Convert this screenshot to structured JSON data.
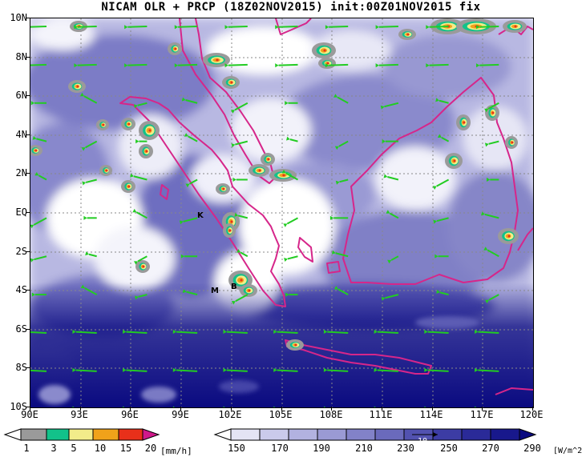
{
  "title": "NICAM OLR + PRCP (18Z02NOV2015) init:00Z01NOV2015 fix",
  "map": {
    "lat_labels": [
      "10N",
      "8N",
      "6N",
      "4N",
      "2N",
      "EQ",
      "2S",
      "4S",
      "6S",
      "8S",
      "10S"
    ],
    "lon_labels": [
      "90E",
      "93E",
      "96E",
      "99E",
      "102E",
      "105E",
      "108E",
      "111E",
      "114E",
      "117E",
      "120E"
    ],
    "station_labels": [
      "K",
      "M",
      "B"
    ],
    "coast_color": "#d6268a",
    "vector_color": "#22cc22",
    "grid_color": "#888888"
  },
  "precip_colorbar": {
    "labels": [
      "1",
      "3",
      "5",
      "10",
      "15",
      "20"
    ],
    "unit": "[mm/h]",
    "colors": [
      "#ffffff",
      "#9a9a9a",
      "#12c28a",
      "#f2ec8a",
      "#f0a21a",
      "#e8301a",
      "#d0188a"
    ]
  },
  "olr_colorbar": {
    "labels": [
      "150",
      "170",
      "190",
      "210",
      "230",
      "250",
      "270",
      "290"
    ],
    "unit": "[W/m^2]",
    "vector_ref": "10",
    "colors": [
      "#ffffff",
      "#e4e4f4",
      "#cacaeb",
      "#b2b2e0",
      "#9a9ad4",
      "#8282c8",
      "#6a6abc",
      "#5252b0",
      "#3c3ca4",
      "#2a2a98",
      "#18188c",
      "#0a0a80"
    ]
  }
}
